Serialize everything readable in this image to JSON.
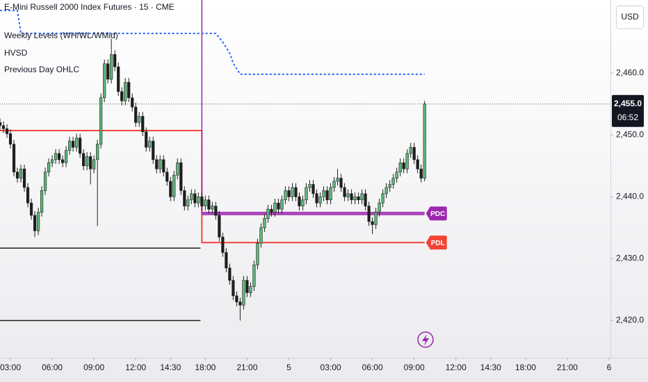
{
  "chart_data": {
    "type": "candlestick",
    "title": "E-Mini Russell 2000 Index Futures · 15 · CME",
    "legend": [
      "Weekly Levels (WH/WL/WMid)",
      "HVSD",
      "Previous Day OHLC"
    ],
    "currency": "USD",
    "price_label": "2,455.0",
    "countdown": "06:52",
    "up_color": "#5cb97a",
    "down_color": "#1e1e1e",
    "wick_color": "#1e1e1e",
    "grid": false,
    "xlim": [
      -3,
      172.4
    ],
    "ylim": [
      2414,
      2471.8
    ],
    "yticks": [
      {
        "value": 2420,
        "label": "2,420.0"
      },
      {
        "value": 2430,
        "label": "2,430.0"
      },
      {
        "value": 2440,
        "label": "2,440.0"
      },
      {
        "value": 2450,
        "label": "2,450.0"
      },
      {
        "value": 2460,
        "label": "2,460.0"
      }
    ],
    "xticks": [
      {
        "value": 0,
        "label": "03:00"
      },
      {
        "value": 12,
        "label": "06:00"
      },
      {
        "value": 24,
        "label": "09:00"
      },
      {
        "value": 36,
        "label": "12:00"
      },
      {
        "value": 46,
        "label": "14:30"
      },
      {
        "value": 56,
        "label": "18:00"
      },
      {
        "value": 68,
        "label": "21:00"
      },
      {
        "value": 80,
        "label": "5"
      },
      {
        "value": 92,
        "label": "03:00"
      },
      {
        "value": 104,
        "label": "06:00"
      },
      {
        "value": 116,
        "label": "09:00"
      },
      {
        "value": 128,
        "label": "12:00"
      },
      {
        "value": 138,
        "label": "14:30"
      },
      {
        "value": 148,
        "label": "18:00"
      },
      {
        "value": 160,
        "label": "21:00"
      },
      {
        "value": 172,
        "label": "6"
      }
    ],
    "x": [
      -3,
      -2,
      -1,
      0,
      1,
      2,
      3,
      4,
      5,
      6,
      7,
      8,
      9,
      10,
      11,
      12,
      13,
      14,
      15,
      16,
      17,
      18,
      19,
      20,
      21,
      22,
      23,
      24,
      25,
      26,
      27,
      28,
      29,
      30,
      31,
      32,
      33,
      34,
      35,
      36,
      37,
      38,
      39,
      40,
      41,
      42,
      43,
      44,
      45,
      46,
      47,
      48,
      49,
      50,
      51,
      52,
      53,
      54,
      55,
      56,
      57,
      58,
      59,
      60,
      61,
      62,
      63,
      64,
      65,
      66,
      67,
      68,
      69,
      70,
      71,
      72,
      73,
      74,
      75,
      76,
      77,
      78,
      79,
      80,
      81,
      82,
      83,
      84,
      85,
      86,
      87,
      88,
      89,
      90,
      91,
      92,
      93,
      94,
      95,
      96,
      97,
      98,
      99,
      100,
      101,
      102,
      103,
      104,
      105,
      106,
      107,
      108,
      109,
      110,
      111,
      112,
      113,
      114,
      115,
      116,
      117,
      118,
      119
    ],
    "open": [
      2452.0,
      2451.5,
      2451.0,
      2450.2,
      2448.5,
      2444.0,
      2443.0,
      2444.5,
      2441.5,
      2439.0,
      2437.0,
      2434.5,
      2437.5,
      2441.0,
      2444.0,
      2445.5,
      2446.0,
      2447.0,
      2446.0,
      2445.5,
      2447.5,
      2449.0,
      2448.0,
      2449.5,
      2447.0,
      2445.0,
      2446.5,
      2444.5,
      2446.0,
      2448.5,
      2456.0,
      2461.5,
      2459.0,
      2463.0,
      2461.0,
      2457.0,
      2455.5,
      2458.5,
      2456.0,
      2454.5,
      2452.0,
      2453.0,
      2450.5,
      2448.0,
      2449.0,
      2446.0,
      2444.5,
      2446.0,
      2444.0,
      2442.5,
      2440.0,
      2443.5,
      2445.5,
      2441.0,
      2438.5,
      2439.5,
      2440.5,
      2439.0,
      2440.0,
      2438.5,
      2439.5,
      2438.0,
      2438.5,
      2437.0,
      2433.5,
      2431.0,
      2428.5,
      2426.5,
      2424.0,
      2423.0,
      2422.5,
      2426.5,
      2424.5,
      2425.5,
      2429.0,
      2432.5,
      2435.0,
      2436.5,
      2438.0,
      2437.5,
      2439.0,
      2438.0,
      2439.5,
      2441.0,
      2440.0,
      2441.5,
      2440.0,
      2438.5,
      2439.5,
      2441.5,
      2442.0,
      2440.5,
      2439.0,
      2440.0,
      2441.0,
      2439.5,
      2441.5,
      2442.5,
      2443.0,
      2441.5,
      2440.0,
      2440.5,
      2439.5,
      2440.0,
      2439.5,
      2440.5,
      2438.5,
      2436.0,
      2435.5,
      2437.5,
      2439.0,
      2440.5,
      2441.5,
      2442.0,
      2443.0,
      2444.0,
      2445.5,
      2444.5,
      2447.0,
      2448.0,
      2446.0,
      2444.5,
      2443.0
    ],
    "high": [
      2452.7,
      2452.2,
      2451.7,
      2450.9,
      2449.2,
      2444.7,
      2445.2,
      2445.2,
      2442.2,
      2439.7,
      2437.7,
      2438.2,
      2441.7,
      2444.7,
      2446.2,
      2446.7,
      2447.7,
      2447.7,
      2446.7,
      2448.2,
      2449.7,
      2449.7,
      2450.2,
      2450.2,
      2447.7,
      2447.2,
      2447.2,
      2446.7,
      2449.2,
      2456.7,
      2462.2,
      2462.2,
      2465.5,
      2463.7,
      2461.7,
      2457.7,
      2459.2,
      2459.2,
      2456.7,
      2455.2,
      2453.7,
      2453.7,
      2451.2,
      2449.7,
      2449.7,
      2446.7,
      2446.7,
      2446.7,
      2444.7,
      2443.2,
      2444.2,
      2446.2,
      2446.2,
      2441.7,
      2440.2,
      2441.2,
      2441.2,
      2440.7,
      2440.7,
      2440.2,
      2440.2,
      2439.2,
      2439.2,
      2437.7,
      2434.2,
      2431.7,
      2429.2,
      2427.2,
      2424.7,
      2423.7,
      2427.2,
      2427.2,
      2426.2,
      2429.7,
      2433.2,
      2435.7,
      2437.2,
      2438.7,
      2438.7,
      2439.7,
      2439.7,
      2440.2,
      2441.7,
      2441.7,
      2442.2,
      2442.2,
      2440.7,
      2440.2,
      2442.2,
      2442.7,
      2442.7,
      2441.2,
      2440.7,
      2441.7,
      2441.7,
      2442.2,
      2443.2,
      2444.5,
      2443.7,
      2442.2,
      2441.2,
      2441.2,
      2440.7,
      2440.7,
      2441.2,
      2441.2,
      2439.2,
      2436.7,
      2438.2,
      2439.7,
      2441.2,
      2442.2,
      2442.7,
      2443.7,
      2444.7,
      2446.2,
      2446.2,
      2447.7,
      2448.7,
      2448.7,
      2446.7,
      2445.2,
      2455.5
    ],
    "low": [
      2450.8,
      2450.3,
      2449.5,
      2447.8,
      2443.3,
      2442.3,
      2442.3,
      2440.8,
      2438.3,
      2436.3,
      2433.5,
      2433.8,
      2436.8,
      2440.3,
      2443.3,
      2444.8,
      2445.3,
      2445.3,
      2444.8,
      2444.8,
      2446.8,
      2447.3,
      2447.3,
      2446.3,
      2444.3,
      2444.3,
      2442.0,
      2443.8,
      2435.3,
      2447.8,
      2455.3,
      2458.3,
      2458.3,
      2460.3,
      2456.3,
      2454.8,
      2454.8,
      2455.3,
      2453.8,
      2451.3,
      2451.3,
      2449.8,
      2447.3,
      2447.3,
      2445.3,
      2443.8,
      2443.8,
      2443.3,
      2441.8,
      2439.3,
      2439.3,
      2442.8,
      2440.3,
      2437.8,
      2437.8,
      2438.8,
      2438.3,
      2438.3,
      2437.8,
      2437.8,
      2437.3,
      2437.3,
      2436.3,
      2432.8,
      2430.3,
      2427.8,
      2425.8,
      2423.3,
      2422.3,
      2420.0,
      2421.8,
      2423.8,
      2423.8,
      2424.8,
      2428.3,
      2431.8,
      2434.3,
      2435.8,
      2436.8,
      2436.8,
      2437.3,
      2437.3,
      2438.8,
      2439.3,
      2439.3,
      2439.3,
      2437.8,
      2437.8,
      2438.8,
      2440.8,
      2439.8,
      2438.3,
      2438.3,
      2439.3,
      2438.8,
      2438.8,
      2440.8,
      2441.8,
      2440.8,
      2439.3,
      2439.3,
      2438.8,
      2438.8,
      2438.8,
      2438.8,
      2437.8,
      2435.3,
      2434.0,
      2434.8,
      2436.8,
      2438.3,
      2439.8,
      2440.8,
      2441.3,
      2442.3,
      2443.3,
      2443.8,
      2443.8,
      2446.3,
      2445.3,
      2443.8,
      2442.3,
      2442.5
    ],
    "close": [
      2451.5,
      2451.0,
      2450.2,
      2448.5,
      2444.0,
      2443.0,
      2444.5,
      2441.5,
      2439.0,
      2437.0,
      2434.5,
      2437.5,
      2441.0,
      2444.0,
      2445.5,
      2446.0,
      2447.0,
      2446.0,
      2445.5,
      2447.5,
      2449.0,
      2448.0,
      2449.5,
      2447.0,
      2445.0,
      2446.5,
      2444.5,
      2446.0,
      2448.5,
      2456.0,
      2461.5,
      2459.0,
      2463.0,
      2461.0,
      2457.0,
      2455.5,
      2458.5,
      2456.0,
      2454.5,
      2452.0,
      2453.0,
      2450.5,
      2448.0,
      2449.0,
      2446.0,
      2444.5,
      2446.0,
      2444.0,
      2442.5,
      2440.0,
      2443.5,
      2445.5,
      2441.0,
      2438.5,
      2439.5,
      2440.5,
      2439.0,
      2440.0,
      2438.5,
      2439.5,
      2438.0,
      2438.5,
      2437.0,
      2433.5,
      2431.0,
      2428.5,
      2426.5,
      2424.0,
      2423.0,
      2422.5,
      2426.5,
      2424.5,
      2425.5,
      2429.0,
      2432.5,
      2435.0,
      2436.5,
      2438.0,
      2437.5,
      2439.0,
      2438.0,
      2439.5,
      2441.0,
      2440.0,
      2441.5,
      2440.0,
      2438.5,
      2439.5,
      2441.5,
      2442.0,
      2440.5,
      2439.0,
      2440.0,
      2441.0,
      2439.5,
      2441.5,
      2442.5,
      2443.0,
      2441.5,
      2440.0,
      2440.5,
      2439.5,
      2440.0,
      2439.5,
      2440.5,
      2438.5,
      2436.0,
      2435.5,
      2437.5,
      2439.0,
      2440.5,
      2441.5,
      2442.0,
      2443.0,
      2444.0,
      2445.5,
      2444.5,
      2447.0,
      2448.0,
      2446.0,
      2444.5,
      2443.0,
      2455.0
    ],
    "session_start": 55,
    "overlays": [
      {
        "x": [
          -3,
          2,
          3,
          59,
          61,
          63,
          64,
          66,
          119
        ],
        "values": [
          2470.1,
          2470.1,
          2466.4,
          2466.4,
          2465.0,
          2463.2,
          2461.6,
          2459.8,
          2459.8
        ],
        "color": "#2962ff",
        "line_width": 2,
        "dashed": true
      },
      {
        "name": "PDL",
        "x": [
          -3,
          55,
          55,
          119
        ],
        "values": [
          2450.7,
          2450.7,
          2432.6,
          2432.6
        ],
        "color": "#f44336",
        "line_width": 2,
        "dashed": false
      },
      {
        "name": "PDC",
        "x": [
          55,
          119
        ],
        "values": [
          2437.3,
          2437.3
        ],
        "color": "#9c27b0",
        "line_width": 5,
        "dashed": false
      },
      {
        "x": [
          -3,
          54.6
        ],
        "values": [
          2431.7,
          2431.7
        ],
        "color": "#1e1e1e",
        "line_width": 1.5,
        "dashed": false
      },
      {
        "x": [
          -3,
          54.6
        ],
        "values": [
          2420.0,
          2420.0
        ],
        "color": "#1e1e1e",
        "line_width": 1.5,
        "dashed": false
      }
    ]
  }
}
